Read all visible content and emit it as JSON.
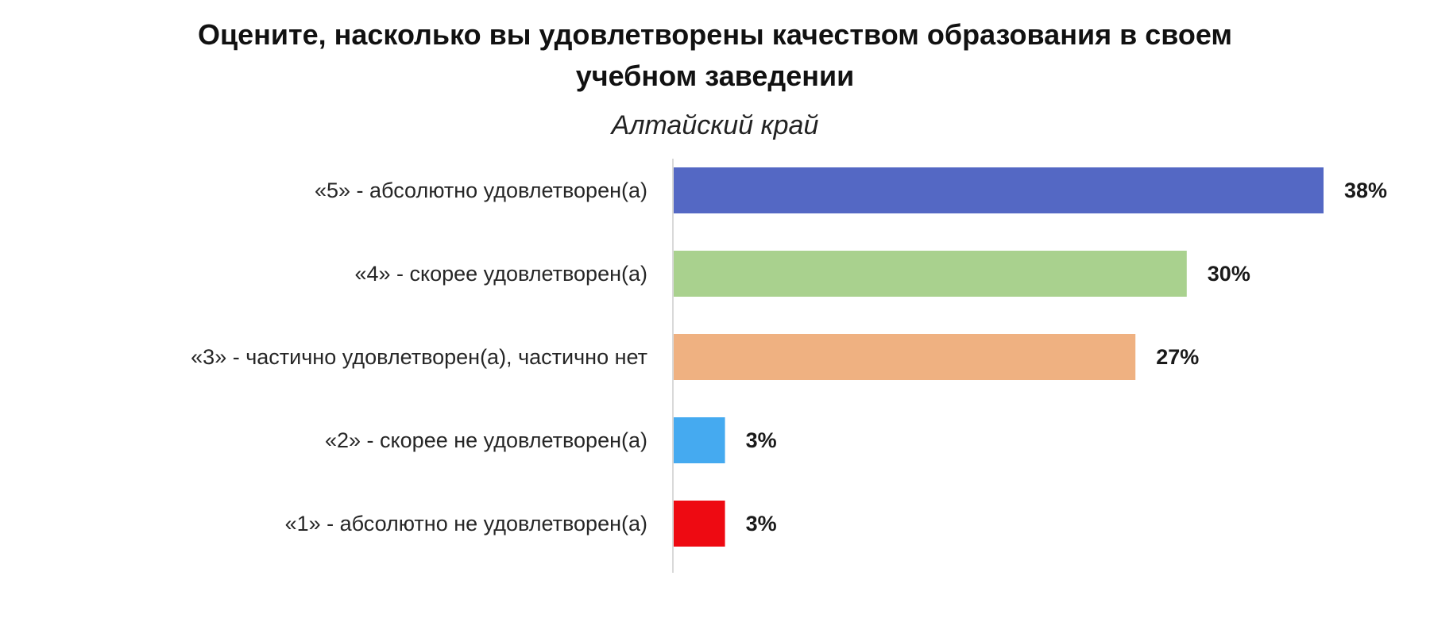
{
  "chart_data": {
    "type": "bar",
    "orientation": "horizontal",
    "title": "Оцените, насколько вы удовлетворены качеством образования в своем учебном заведении",
    "title_lines": [
      "Оцените, насколько вы удовлетворены качеством образования в своем",
      "учебном заведении"
    ],
    "subtitle": "Алтайский край",
    "categories": [
      "«5» - абсолютно удовлетворен(а)",
      "«4» - скорее удовлетворен(а)",
      "«3» - частично удовлетворен(а), частично нет",
      "«2» - скорее не удовлетворен(а)",
      "«1» - абсолютно не удовлетворен(а)"
    ],
    "values": [
      38,
      30,
      27,
      3,
      3
    ],
    "value_labels": [
      "38%",
      "30%",
      "27%",
      "3%",
      "3%"
    ],
    "colors": [
      "#5468c4",
      "#a9d18e",
      "#efb181",
      "#45aaf0",
      "#ee0a12"
    ],
    "xlim": [
      0,
      38
    ],
    "grid": false,
    "xlabel": "",
    "ylabel": ""
  }
}
